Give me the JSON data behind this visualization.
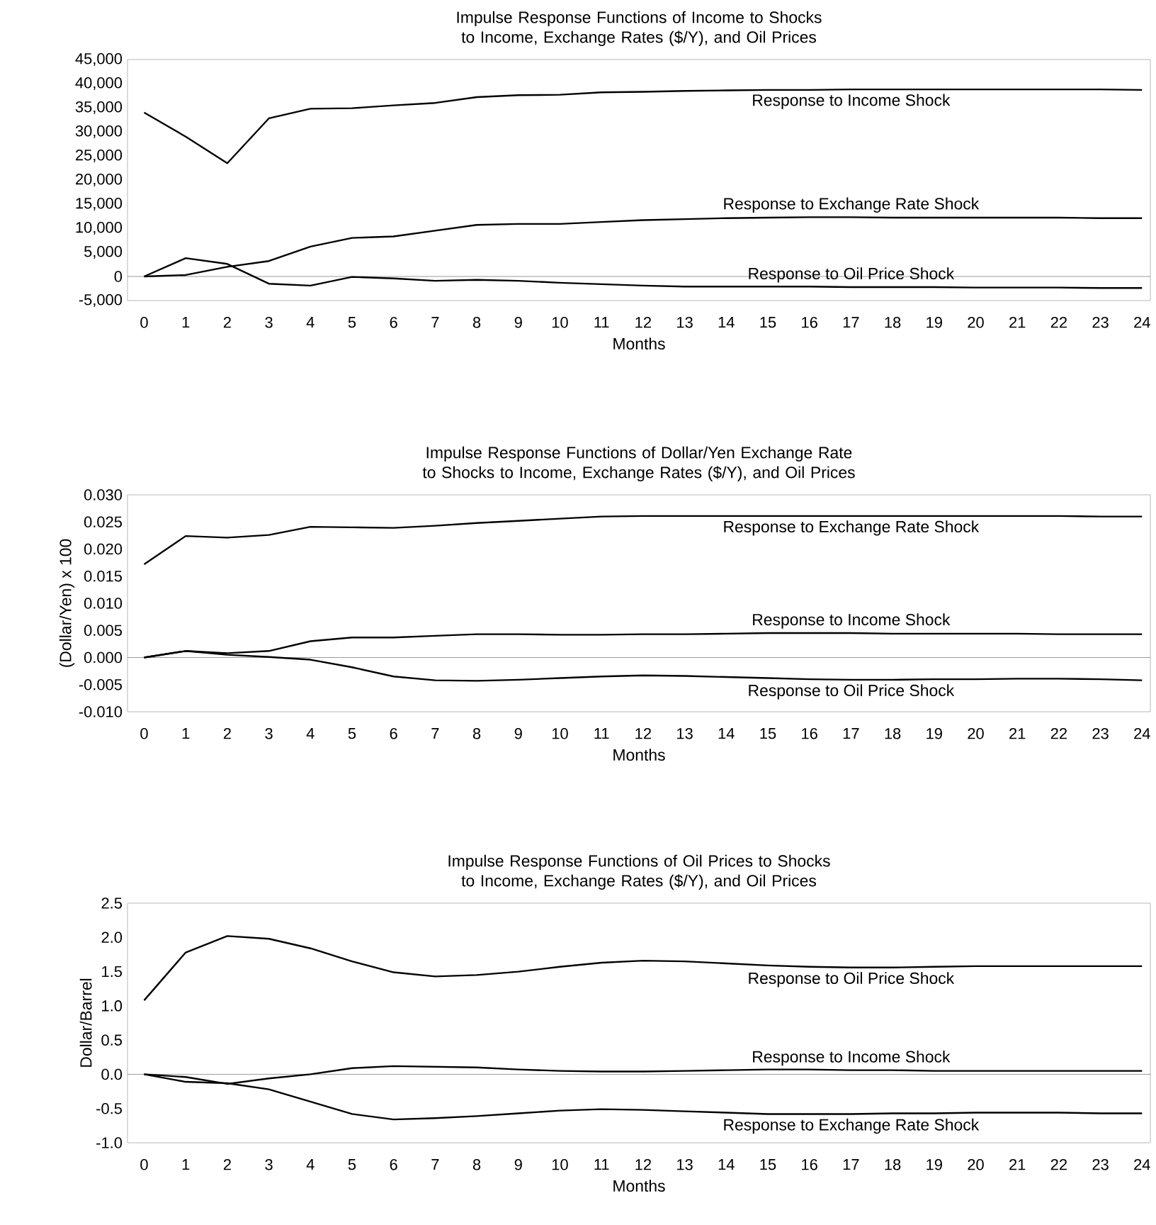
{
  "chart_data": [
    {
      "type": "line",
      "title": "Impulse Response Functions of Income to Shocks to Income, Exchange Rates ($/Y), and Oil Prices",
      "xlabel": "Months",
      "categories": [
        "0",
        "1",
        "2",
        "3",
        "4",
        "5",
        "6",
        "7",
        "8",
        "9",
        "10",
        "11",
        "12",
        "13",
        "14",
        "15",
        "16",
        "17",
        "18",
        "19",
        "20",
        "21",
        "22",
        "23",
        "24"
      ],
      "series": [
        {
          "name": "Response to Income Shock",
          "color": "#000000",
          "values": [
            34000,
            29000,
            23500,
            32800,
            34800,
            34900,
            35500,
            36000,
            37200,
            37600,
            37700,
            38200,
            38300,
            38500,
            38600,
            38700,
            38700,
            38800,
            38800,
            38800,
            38800,
            38800,
            38800,
            38800,
            38700
          ]
        },
        {
          "name": "Response to Exchange Rate Shock",
          "color": "#000000",
          "values": [
            0,
            300,
            2000,
            3200,
            6200,
            8000,
            8300,
            9500,
            10700,
            10900,
            10900,
            11300,
            11700,
            11900,
            12100,
            12200,
            12300,
            12300,
            12200,
            12200,
            12200,
            12200,
            12200,
            12100,
            12100
          ]
        },
        {
          "name": "Response to Oil Price Shock",
          "color": "#000000",
          "values": [
            0,
            3800,
            2600,
            -1500,
            -1900,
            -100,
            -400,
            -900,
            -700,
            -900,
            -1300,
            -1600,
            -1900,
            -2100,
            -2100,
            -2100,
            -2100,
            -2200,
            -2200,
            -2200,
            -2300,
            -2300,
            -2300,
            -2400,
            -2400
          ]
        }
      ],
      "ylim": [
        -5000,
        45000
      ],
      "yticks": [
        {
          "value": -5000,
          "label": "-5,000"
        },
        0,
        {
          "value": 5000,
          "label": "5,000"
        },
        {
          "value": 10000,
          "label": "10,000"
        },
        {
          "value": 15000,
          "label": "15,000"
        },
        {
          "value": 20000,
          "label": "20,000"
        },
        {
          "value": 25000,
          "label": "25,000"
        },
        {
          "value": 30000,
          "label": "30,000"
        },
        {
          "value": 35000,
          "label": "35,000"
        },
        {
          "value": 40000,
          "label": "40,000"
        },
        {
          "value": 45000,
          "label": "45,000"
        }
      ],
      "ref_lines": [
        {
          "axis": "y",
          "value": 0,
          "color": "#808080"
        }
      ]
    },
    {
      "type": "line",
      "title": "Impulse Response Functions of Dollar/Yen Exchange Rate to Shocks to Income, Exchange Rates ($/Y), and Oil Prices",
      "xlabel": "Months",
      "ylabel": "(Dollar/Yen) x 100",
      "categories": [
        "0",
        "1",
        "2",
        "3",
        "4",
        "5",
        "6",
        "7",
        "8",
        "9",
        "10",
        "11",
        "12",
        "13",
        "14",
        "15",
        "16",
        "17",
        "18",
        "19",
        "20",
        "21",
        "22",
        "23",
        "24"
      ],
      "series": [
        {
          "name": "Response to Exchange Rate Shock",
          "color": "#000000",
          "values": [
            0.0172,
            0.0224,
            0.0221,
            0.0226,
            0.0241,
            0.024,
            0.0239,
            0.0243,
            0.0248,
            0.0252,
            0.0256,
            0.026,
            0.0261,
            0.0261,
            0.0261,
            0.0261,
            0.0261,
            0.0261,
            0.0261,
            0.0261,
            0.0261,
            0.0261,
            0.0261,
            0.026,
            0.026
          ]
        },
        {
          "name": "Response to Income Shock",
          "color": "#000000",
          "values": [
            0,
            0.0012,
            0.0008,
            0.0012,
            0.003,
            0.0037,
            0.0037,
            0.004,
            0.0043,
            0.0043,
            0.0042,
            0.0042,
            0.0043,
            0.0043,
            0.0044,
            0.0045,
            0.0045,
            0.0045,
            0.0044,
            0.0044,
            0.0044,
            0.0044,
            0.0043,
            0.0043,
            0.0043
          ]
        },
        {
          "name": "Response to Oil Price Shock",
          "color": "#000000",
          "values": [
            0,
            0.0012,
            0.0005,
            0.0001,
            -0.0004,
            -0.0018,
            -0.0035,
            -0.0042,
            -0.0043,
            -0.0041,
            -0.0038,
            -0.0035,
            -0.0033,
            -0.0034,
            -0.0036,
            -0.0038,
            -0.004,
            -0.0041,
            -0.0041,
            -0.004,
            -0.004,
            -0.0039,
            -0.0039,
            -0.004,
            -0.0042
          ]
        }
      ],
      "ylim": [
        -0.01,
        0.03
      ],
      "yticks": [
        {
          "value": -0.01,
          "label": "-0.010"
        },
        {
          "value": -0.005,
          "label": "-0.005"
        },
        {
          "value": 0,
          "label": "0.000"
        },
        {
          "value": 0.005,
          "label": "0.005"
        },
        {
          "value": 0.01,
          "label": "0.010"
        },
        {
          "value": 0.015,
          "label": "0.015"
        },
        {
          "value": 0.02,
          "label": "0.020"
        },
        {
          "value": 0.025,
          "label": "0.025"
        },
        {
          "value": 0.03,
          "label": "0.030"
        }
      ],
      "ref_lines": [
        {
          "axis": "y",
          "value": 0,
          "color": "#808080"
        }
      ]
    },
    {
      "type": "line",
      "title": "Impulse Response Functions of Oil Prices to Shocks to Income, Exchange Rates ($/Y), and Oil Prices",
      "xlabel": "Months",
      "ylabel": "Dollar/Barrel",
      "categories": [
        "0",
        "1",
        "2",
        "3",
        "4",
        "5",
        "6",
        "7",
        "8",
        "9",
        "10",
        "11",
        "12",
        "13",
        "14",
        "15",
        "16",
        "17",
        "18",
        "19",
        "20",
        "21",
        "22",
        "23",
        "24"
      ],
      "series": [
        {
          "name": "Response to Oil Price Shock",
          "color": "#000000",
          "values": [
            1.08,
            1.78,
            2.02,
            1.98,
            1.84,
            1.65,
            1.49,
            1.43,
            1.45,
            1.5,
            1.57,
            1.63,
            1.66,
            1.65,
            1.62,
            1.59,
            1.57,
            1.56,
            1.56,
            1.57,
            1.58,
            1.58,
            1.58,
            1.58,
            1.58
          ]
        },
        {
          "name": "Response to Income Shock",
          "color": "#000000",
          "values": [
            0,
            -0.04,
            -0.14,
            -0.06,
            0,
            0.09,
            0.12,
            0.11,
            0.1,
            0.07,
            0.05,
            0.04,
            0.04,
            0.05,
            0.06,
            0.07,
            0.07,
            0.06,
            0.06,
            0.05,
            0.05,
            0.05,
            0.05,
            0.05,
            0.05
          ]
        },
        {
          "name": "Response to Exchange Rate Shock",
          "color": "#000000",
          "values": [
            0,
            -0.11,
            -0.13,
            -0.22,
            -0.4,
            -0.58,
            -0.66,
            -0.64,
            -0.61,
            -0.57,
            -0.53,
            -0.51,
            -0.52,
            -0.54,
            -0.56,
            -0.58,
            -0.58,
            -0.58,
            -0.57,
            -0.57,
            -0.56,
            -0.56,
            -0.56,
            -0.57,
            -0.57
          ]
        }
      ],
      "ylim": [
        -1.0,
        2.5
      ],
      "yticks": [
        {
          "value": -1.0,
          "label": "-1.0"
        },
        -0.5,
        {
          "value": 0,
          "label": "0.0"
        },
        0.5,
        {
          "value": 1.0,
          "label": "1.0"
        },
        1.5,
        {
          "value": 2.0,
          "label": "2.0"
        },
        2.5
      ],
      "ref_lines": [
        {
          "axis": "y",
          "value": 0,
          "color": "#808080"
        }
      ]
    }
  ]
}
